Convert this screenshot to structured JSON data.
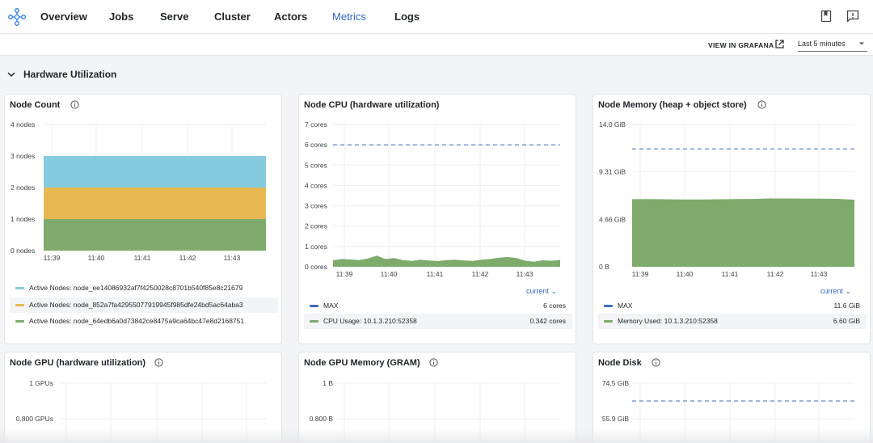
{
  "nav": {
    "items": [
      "Overview",
      "Jobs",
      "Serve",
      "Cluster",
      "Actors",
      "Metrics",
      "Logs"
    ],
    "active": "Metrics",
    "right_icons": [
      "book-icon",
      "feedback-icon"
    ]
  },
  "toolbar": {
    "grafana_label": "VIEW IN GRAFANA",
    "time_range": "Last 5 minutes"
  },
  "section": {
    "title": "Hardware Utilization"
  },
  "colors": {
    "accent": "#3366cc",
    "green": "#7eab6c",
    "yellow": "#e6b953",
    "blue": "#84cbdf",
    "max_line": "#3d6bc4"
  },
  "panels": [
    {
      "title": "Node Count",
      "chart_data": {
        "type": "area",
        "y_ticks": [
          "4 nodes",
          "3 nodes",
          "2 nodes",
          "1 nodes",
          "0 nodes"
        ],
        "x_ticks": [
          "11:39",
          "11:40",
          "11:41",
          "11:42",
          "11:43"
        ],
        "ylim": [
          0,
          4
        ],
        "series": [
          {
            "name": "Active Nodes: node_ee14086932af7f4250028c8701b540f85e8c21679",
            "color": "#84cbdf",
            "values": [
              1,
              1
            ]
          },
          {
            "name": "Active Nodes: node_852a7fa42955077919945f985dfe24bd5ac64aba3",
            "color": "#e6b953",
            "values": [
              1,
              1
            ]
          },
          {
            "name": "Active Nodes: node_64edb6a0d73842ce8475a9ca64bc47e8d2168751",
            "color": "#7eab6c",
            "values": [
              1,
              1
            ]
          }
        ]
      }
    },
    {
      "title": "Node CPU (hardware utilization)",
      "current_label": "current",
      "chart_data": {
        "type": "area",
        "y_ticks": [
          "7 cores",
          "6 cores",
          "5 cores",
          "4 cores",
          "3 cores",
          "2 cores",
          "1 cores",
          "0 cores"
        ],
        "x_ticks": [
          "11:39",
          "11:40",
          "11:41",
          "11:42",
          "11:43"
        ],
        "ylim": [
          0,
          7
        ],
        "series": [
          {
            "name": "MAX",
            "value_text": "6 cores",
            "color": "#3d6bc4",
            "values": [
              6,
              6
            ]
          },
          {
            "name": "CPU Usage: 10.1.3.210:52358",
            "value_text": "0.342 cores",
            "color": "#7eab6c",
            "values": [
              0.32,
              0.38,
              0.36,
              0.33,
              0.41,
              0.55,
              0.38,
              0.43,
              0.33,
              0.29,
              0.35,
              0.31,
              0.28,
              0.33,
              0.35,
              0.31,
              0.29,
              0.35,
              0.38,
              0.45,
              0.48,
              0.43,
              0.3,
              0.25,
              0.32,
              0.3,
              0.34
            ]
          }
        ]
      }
    },
    {
      "title": "Node Memory (heap + object store)",
      "current_label": "current",
      "chart_data": {
        "type": "area",
        "y_ticks": [
          "14.0 GiB",
          "9.31 GiB",
          "4.66 GiB",
          "0 B"
        ],
        "x_ticks": [
          "11:39",
          "11:40",
          "11:41",
          "11:42",
          "11:43"
        ],
        "ylim": [
          0,
          14.0
        ],
        "series": [
          {
            "name": "MAX",
            "value_text": "11.6 GiB",
            "color": "#3d6bc4",
            "values": [
              11.6,
              11.6
            ]
          },
          {
            "name": "Memory Used: 10.1.3.210:52358",
            "value_text": "6.60 GiB",
            "color": "#7eab6c",
            "values": [
              6.65,
              6.66,
              6.64,
              6.63,
              6.63,
              6.64,
              6.66,
              6.67,
              6.72,
              6.72,
              6.71,
              6.7,
              6.68,
              6.6
            ]
          }
        ]
      }
    },
    {
      "title": "Node GPU (hardware utilization)",
      "chart_data": {
        "type": "line",
        "y_ticks": [
          "1 GPUs",
          "0.800 GPUs"
        ],
        "series": []
      }
    },
    {
      "title": "Node GPU Memory (GRAM)",
      "chart_data": {
        "type": "line",
        "y_ticks": [
          "1 B",
          "0.800 B"
        ],
        "series": []
      }
    },
    {
      "title": "Node Disk",
      "chart_data": {
        "type": "line",
        "y_ticks": [
          "74.5 GiB",
          "55.9 GiB"
        ],
        "series": []
      }
    }
  ]
}
